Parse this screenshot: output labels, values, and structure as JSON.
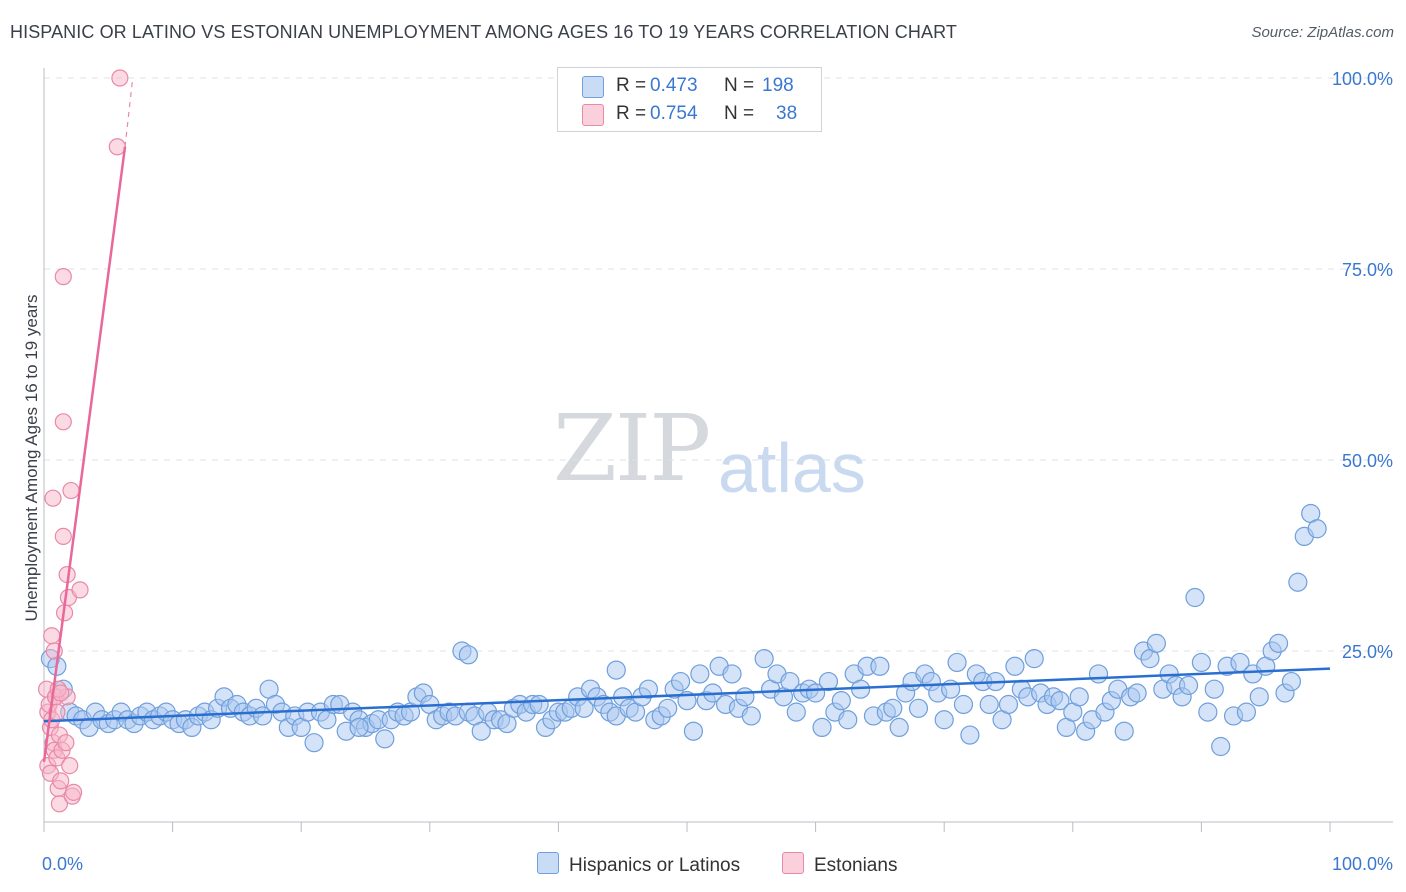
{
  "title": "HISPANIC OR LATINO VS ESTONIAN UNEMPLOYMENT AMONG AGES 16 TO 19 YEARS CORRELATION CHART",
  "source": "Source: ZipAtlas.com",
  "watermark": {
    "zip": "ZIP",
    "atlas": "atlas"
  },
  "legend": {
    "r_label": "R =",
    "n_label": "N =",
    "rows": [
      {
        "r": "0.473",
        "n": "198",
        "color": "#aac8f0"
      },
      {
        "r": "0.754",
        "n": "38",
        "color": "#f7b6ca"
      }
    ]
  },
  "bottom_legend": [
    {
      "label": "Hispanics or Latinos",
      "color": "#aac8f0"
    },
    {
      "label": "Estonians",
      "color": "#f7b6ca"
    }
  ],
  "colors": {
    "blue_fill": "#aac8f0",
    "blue_stroke": "#6f9fdc",
    "blue_line": "#2a6fd0",
    "pink_fill": "#f7b6ca",
    "pink_stroke": "#e889a8",
    "pink_line": "#e8689a",
    "grid": "#dde0e6",
    "axis_label": "#3a78d0"
  },
  "chart_data": {
    "type": "scatter",
    "title": "HISPANIC OR LATINO VS ESTONIAN UNEMPLOYMENT AMONG AGES 16 TO 19 YEARS CORRELATION CHART",
    "xlabel": "",
    "ylabel": "Unemployment Among Ages 16 to 19 years",
    "xlim": [
      0,
      100
    ],
    "ylim": [
      0,
      100
    ],
    "x_tick_labels": [
      "0.0%",
      "100.0%"
    ],
    "y_tick_labels": [
      "25.0%",
      "50.0%",
      "75.0%",
      "100.0%"
    ],
    "y_ticks": [
      25,
      50,
      75,
      100
    ],
    "series": [
      {
        "name": "Hispanics or Latinos",
        "r": 0.473,
        "n": 198,
        "trend": {
          "x": [
            0,
            100
          ],
          "y": [
            15.8,
            22.7
          ]
        },
        "points": [
          [
            0.5,
            24
          ],
          [
            1,
            23
          ],
          [
            1.5,
            20
          ],
          [
            2,
            17
          ],
          [
            2.5,
            16.5
          ],
          [
            3,
            16
          ],
          [
            3.5,
            15
          ],
          [
            4,
            17
          ],
          [
            4.5,
            16
          ],
          [
            5,
            15.5
          ],
          [
            5.5,
            16
          ],
          [
            6,
            17
          ],
          [
            6.5,
            16
          ],
          [
            7,
            15.5
          ],
          [
            7.5,
            16.5
          ],
          [
            8,
            17
          ],
          [
            8.5,
            16
          ],
          [
            9,
            16.5
          ],
          [
            9.5,
            17
          ],
          [
            10,
            16
          ],
          [
            10.5,
            15.5
          ],
          [
            11,
            16
          ],
          [
            11.5,
            15
          ],
          [
            12,
            16.5
          ],
          [
            12.5,
            17
          ],
          [
            13,
            16
          ],
          [
            13.5,
            17.5
          ],
          [
            14,
            19
          ],
          [
            14.5,
            17.5
          ],
          [
            15,
            18
          ],
          [
            15.5,
            17
          ],
          [
            16,
            16.5
          ],
          [
            16.5,
            17.5
          ],
          [
            17,
            16.5
          ],
          [
            17.5,
            20
          ],
          [
            18,
            18
          ],
          [
            18.5,
            17
          ],
          [
            19,
            15
          ],
          [
            19.5,
            16.5
          ],
          [
            20,
            15
          ],
          [
            20.5,
            17
          ],
          [
            21,
            13
          ],
          [
            21.5,
            17
          ],
          [
            22,
            16
          ],
          [
            22.5,
            18
          ],
          [
            23,
            18
          ],
          [
            23.5,
            14.5
          ],
          [
            24,
            17
          ],
          [
            24.5,
            16
          ],
          [
            25,
            15
          ],
          [
            25.5,
            15.5
          ],
          [
            26,
            16
          ],
          [
            26.5,
            13.5
          ],
          [
            27,
            16
          ],
          [
            27.5,
            17
          ],
          [
            28,
            16.5
          ],
          [
            28.5,
            17
          ],
          [
            29,
            19
          ],
          [
            29.5,
            19.5
          ],
          [
            30,
            18
          ],
          [
            30.5,
            16
          ],
          [
            31,
            16.5
          ],
          [
            31.5,
            17
          ],
          [
            32,
            16.5
          ],
          [
            32.5,
            25
          ],
          [
            33,
            17
          ],
          [
            33.5,
            16.5
          ],
          [
            34,
            14.5
          ],
          [
            34.5,
            17
          ],
          [
            35,
            16
          ],
          [
            35.5,
            16
          ],
          [
            36,
            15.5
          ],
          [
            36.5,
            17.5
          ],
          [
            37,
            18
          ],
          [
            37.5,
            17
          ],
          [
            38,
            18
          ],
          [
            38.5,
            18
          ],
          [
            39,
            15
          ],
          [
            39.5,
            16
          ],
          [
            40,
            17
          ],
          [
            40.5,
            17
          ],
          [
            41,
            17.5
          ],
          [
            41.5,
            19
          ],
          [
            42,
            17.5
          ],
          [
            42.5,
            20
          ],
          [
            43,
            19
          ],
          [
            43.5,
            18
          ],
          [
            44,
            17
          ],
          [
            44.5,
            16.5
          ],
          [
            45,
            19
          ],
          [
            45.5,
            17.5
          ],
          [
            46,
            17
          ],
          [
            46.5,
            19
          ],
          [
            47,
            20
          ],
          [
            47.5,
            16
          ],
          [
            48,
            16.5
          ],
          [
            48.5,
            17.5
          ],
          [
            49,
            20
          ],
          [
            49.5,
            21
          ],
          [
            50,
            18.5
          ],
          [
            50.5,
            14.5
          ],
          [
            51,
            22
          ],
          [
            51.5,
            18.5
          ],
          [
            52,
            19.5
          ],
          [
            52.5,
            23
          ],
          [
            53,
            18
          ],
          [
            53.5,
            22
          ],
          [
            54,
            17.5
          ],
          [
            54.5,
            19
          ],
          [
            55,
            16.5
          ],
          [
            56,
            24
          ],
          [
            56.5,
            20
          ],
          [
            57,
            22
          ],
          [
            57.5,
            19
          ],
          [
            58,
            21
          ],
          [
            58.5,
            17
          ],
          [
            59,
            19.5
          ],
          [
            59.5,
            20
          ],
          [
            60,
            19.5
          ],
          [
            60.5,
            15
          ],
          [
            61,
            21
          ],
          [
            61.5,
            17
          ],
          [
            62,
            18.5
          ],
          [
            62.5,
            16
          ],
          [
            63,
            22
          ],
          [
            63.5,
            20
          ],
          [
            64,
            23
          ],
          [
            64.5,
            16.5
          ],
          [
            65,
            23
          ],
          [
            65.5,
            17
          ],
          [
            66,
            17.5
          ],
          [
            66.5,
            15
          ],
          [
            67,
            19.5
          ],
          [
            67.5,
            21
          ],
          [
            68,
            17.5
          ],
          [
            68.5,
            22
          ],
          [
            69,
            21
          ],
          [
            69.5,
            19.5
          ],
          [
            70,
            16
          ],
          [
            70.5,
            20
          ],
          [
            71,
            23.5
          ],
          [
            71.5,
            18
          ],
          [
            72,
            14
          ],
          [
            72.5,
            22
          ],
          [
            73,
            21
          ],
          [
            73.5,
            18
          ],
          [
            74,
            21
          ],
          [
            74.5,
            16
          ],
          [
            75,
            18
          ],
          [
            75.5,
            23
          ],
          [
            76,
            20
          ],
          [
            76.5,
            19
          ],
          [
            77,
            24
          ],
          [
            77.5,
            19.5
          ],
          [
            78,
            18
          ],
          [
            78.5,
            19
          ],
          [
            79,
            18.5
          ],
          [
            79.5,
            15
          ],
          [
            80,
            17
          ],
          [
            80.5,
            19
          ],
          [
            81,
            14.5
          ],
          [
            81.5,
            16
          ],
          [
            82,
            22
          ],
          [
            82.5,
            17
          ],
          [
            83,
            18.5
          ],
          [
            83.5,
            20
          ],
          [
            84,
            14.5
          ],
          [
            84.5,
            19
          ],
          [
            85,
            19.5
          ],
          [
            85.5,
            25
          ],
          [
            86,
            24
          ],
          [
            86.5,
            26
          ],
          [
            87,
            20
          ],
          [
            87.5,
            22
          ],
          [
            88,
            20.5
          ],
          [
            88.5,
            19
          ],
          [
            89,
            20.5
          ],
          [
            89.5,
            32
          ],
          [
            90,
            23.5
          ],
          [
            90.5,
            17
          ],
          [
            91,
            20
          ],
          [
            91.5,
            12.5
          ],
          [
            92,
            23
          ],
          [
            92.5,
            16.5
          ],
          [
            93,
            23.5
          ],
          [
            93.5,
            17
          ],
          [
            94,
            22
          ],
          [
            94.5,
            19
          ],
          [
            95,
            23
          ],
          [
            95.5,
            25
          ],
          [
            96,
            26
          ],
          [
            96.5,
            19.5
          ],
          [
            97,
            21
          ],
          [
            97.5,
            34
          ],
          [
            98,
            40
          ],
          [
            98.5,
            43
          ],
          [
            99,
            41
          ],
          [
            44.5,
            22.5
          ],
          [
            24.5,
            15
          ],
          [
            33,
            24.5
          ]
        ]
      },
      {
        "name": "Estonians",
        "r": 0.754,
        "n": 38,
        "trend": {
          "x": [
            0,
            6.3
          ],
          "y": [
            10.5,
            91
          ],
          "dashed_to": {
            "x": 6.9,
            "y": 100
          }
        },
        "points": [
          [
            0.2,
            20
          ],
          [
            0.3,
            17
          ],
          [
            0.4,
            18
          ],
          [
            0.5,
            15
          ],
          [
            0.6,
            16
          ],
          [
            0.7,
            13
          ],
          [
            0.8,
            12
          ],
          [
            0.9,
            19
          ],
          [
            1,
            17
          ],
          [
            1.2,
            14
          ],
          [
            0.3,
            10
          ],
          [
            0.5,
            9
          ],
          [
            0.6,
            27
          ],
          [
            0.7,
            45
          ],
          [
            0.8,
            25
          ],
          [
            0.9,
            19
          ],
          [
            1.0,
            11
          ],
          [
            1.1,
            7
          ],
          [
            1.2,
            5
          ],
          [
            1.3,
            8
          ],
          [
            1.4,
            12
          ],
          [
            1.5,
            40
          ],
          [
            1.6,
            30
          ],
          [
            1.7,
            13
          ],
          [
            1.8,
            35
          ],
          [
            1.9,
            32
          ],
          [
            2.0,
            10
          ],
          [
            2.1,
            46
          ],
          [
            2.2,
            6
          ],
          [
            2.3,
            6.5
          ],
          [
            1.5,
            74
          ],
          [
            1.5,
            55
          ],
          [
            1.8,
            19
          ],
          [
            2.8,
            33
          ],
          [
            1.1,
            20
          ],
          [
            1.3,
            19.5
          ],
          [
            5.7,
            91
          ],
          [
            5.9,
            100
          ]
        ]
      }
    ]
  }
}
